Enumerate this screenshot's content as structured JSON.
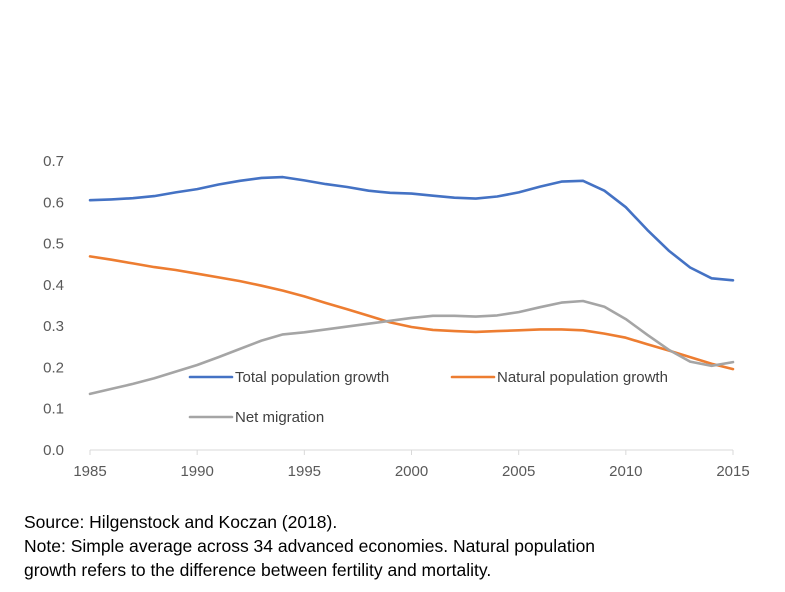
{
  "chart_data": {
    "type": "line",
    "title": "",
    "xlabel": "",
    "ylabel": "",
    "xlim": [
      1985,
      2015
    ],
    "ylim": [
      0,
      0.7
    ],
    "x_ticks": [
      "1985",
      "1990",
      "1995",
      "2000",
      "2005",
      "2010",
      "2015"
    ],
    "y_ticks": [
      "0.0",
      "0.1",
      "0.2",
      "0.3",
      "0.4",
      "0.5",
      "0.6",
      "0.7"
    ],
    "grid": false,
    "legend_position": "inside-bottom",
    "series": [
      {
        "name": "Total population growth",
        "color": "#4472C4",
        "x": [
          1985,
          1986,
          1987,
          1988,
          1989,
          1990,
          1991,
          1992,
          1993,
          1994,
          1995,
          1996,
          1997,
          1998,
          1999,
          2000,
          2001,
          2002,
          2003,
          2004,
          2005,
          2006,
          2007,
          2008,
          2009,
          2010,
          2011,
          2012,
          2013,
          2014,
          2015
        ],
        "values": [
          0.605,
          0.607,
          0.61,
          0.615,
          0.624,
          0.632,
          0.643,
          0.652,
          0.659,
          0.661,
          0.653,
          0.644,
          0.637,
          0.628,
          0.623,
          0.621,
          0.616,
          0.611,
          0.609,
          0.614,
          0.624,
          0.638,
          0.65,
          0.652,
          0.628,
          0.588,
          0.533,
          0.483,
          0.442,
          0.416,
          0.411
        ]
      },
      {
        "name": "Natural population growth",
        "color": "#ED7D31",
        "x": [
          1985,
          1986,
          1987,
          1988,
          1989,
          1990,
          1991,
          1992,
          1993,
          1994,
          1995,
          1996,
          1997,
          1998,
          1999,
          2000,
          2001,
          2002,
          2003,
          2004,
          2005,
          2006,
          2007,
          2008,
          2009,
          2010,
          2011,
          2012,
          2013,
          2014,
          2015
        ],
        "values": [
          0.469,
          0.461,
          0.452,
          0.443,
          0.436,
          0.427,
          0.418,
          0.409,
          0.398,
          0.386,
          0.372,
          0.356,
          0.341,
          0.325,
          0.309,
          0.298,
          0.291,
          0.288,
          0.286,
          0.288,
          0.29,
          0.292,
          0.292,
          0.29,
          0.282,
          0.272,
          0.256,
          0.241,
          0.225,
          0.209,
          0.196
        ]
      },
      {
        "name": "Net migration",
        "color": "#A5A5A5",
        "x": [
          1985,
          1986,
          1987,
          1988,
          1989,
          1990,
          1991,
          1992,
          1993,
          1994,
          1995,
          1996,
          1997,
          1998,
          1999,
          2000,
          2001,
          2002,
          2003,
          2004,
          2005,
          2006,
          2007,
          2008,
          2009,
          2010,
          2011,
          2012,
          2013,
          2014,
          2015
        ],
        "values": [
          0.136,
          0.148,
          0.16,
          0.174,
          0.19,
          0.206,
          0.225,
          0.245,
          0.265,
          0.28,
          0.285,
          0.292,
          0.299,
          0.306,
          0.313,
          0.32,
          0.325,
          0.325,
          0.323,
          0.326,
          0.334,
          0.346,
          0.357,
          0.361,
          0.347,
          0.317,
          0.279,
          0.243,
          0.214,
          0.204,
          0.213
        ]
      }
    ]
  },
  "notes": {
    "source": "Source: Hilgenstock and Koczan (2018).",
    "note_line1": "Note: Simple average across 34 advanced economies. Natural population",
    "note_line2": "growth refers to the difference between fertility and mortality."
  }
}
